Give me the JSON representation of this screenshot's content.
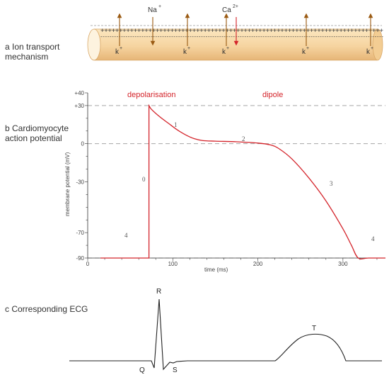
{
  "panels": {
    "a": {
      "label_line1": "a Ion transport",
      "label_line2": "mechanism"
    },
    "b": {
      "label_line1": "b Cardiomyocyte",
      "label_line2": "action potential"
    },
    "c": {
      "label": "c Corresponding ECG"
    }
  },
  "ion_transport": {
    "charges_outside": "+++++++++++++++++++++++++++++++++++++++++++++++++++++++++++++++++++++++++++++",
    "charges_inside": "----------------------------------------------------------------------------------------------------------------------------",
    "ions": {
      "na": "Na",
      "na_sup": "+",
      "ca": "Ca",
      "ca_sup": "2+",
      "k": "k",
      "k_sup": "+"
    },
    "colors": {
      "tube_light": "#fcebc8",
      "tube_dark": "#e7b877",
      "arrow_brown": "#9a5a12",
      "arrow_red": "#d4242b"
    }
  },
  "action_potential": {
    "annotations": {
      "depolarisation": "depolarisation",
      "dipole": "dipole"
    },
    "phase_labels": [
      "0",
      "1",
      "2",
      "3",
      "4",
      "4"
    ],
    "colors": {
      "curve": "#d4242b",
      "annotation": "#d4242b",
      "reference_line": "#999999"
    }
  },
  "chart_data": {
    "type": "line",
    "xlabel": "time  (ms)",
    "ylabel": "membrane potential  (mV)",
    "xlim": [
      0,
      350
    ],
    "ylim": [
      -90,
      40
    ],
    "x_ticks": [
      0,
      100,
      200,
      300
    ],
    "x_tick_labels": [
      "0",
      "100",
      "200",
      "300"
    ],
    "y_ticks": [
      40,
      30,
      0,
      -30,
      -70,
      -90
    ],
    "y_tick_labels": [
      "+40",
      "+30",
      "0",
      "-30",
      "-70",
      "-90"
    ],
    "reference_lines_y": [
      30,
      0,
      -90
    ],
    "series": [
      {
        "x": [
          15,
          72,
          72,
          75,
          85,
          95,
          105,
          115,
          125,
          135,
          150,
          175,
          200,
          215,
          225,
          240,
          260,
          280,
          300,
          310,
          318,
          330,
          350
        ],
        "y": [
          -90,
          -90,
          30,
          27,
          21,
          16,
          11,
          7,
          4,
          2.5,
          2,
          1.5,
          0.5,
          -1,
          -4,
          -12,
          -27,
          -45,
          -67,
          -80,
          -90,
          -90,
          -90
        ]
      }
    ]
  },
  "ecg": {
    "wave_labels": {
      "q": "Q",
      "r": "R",
      "s": "S",
      "t": "T"
    }
  }
}
